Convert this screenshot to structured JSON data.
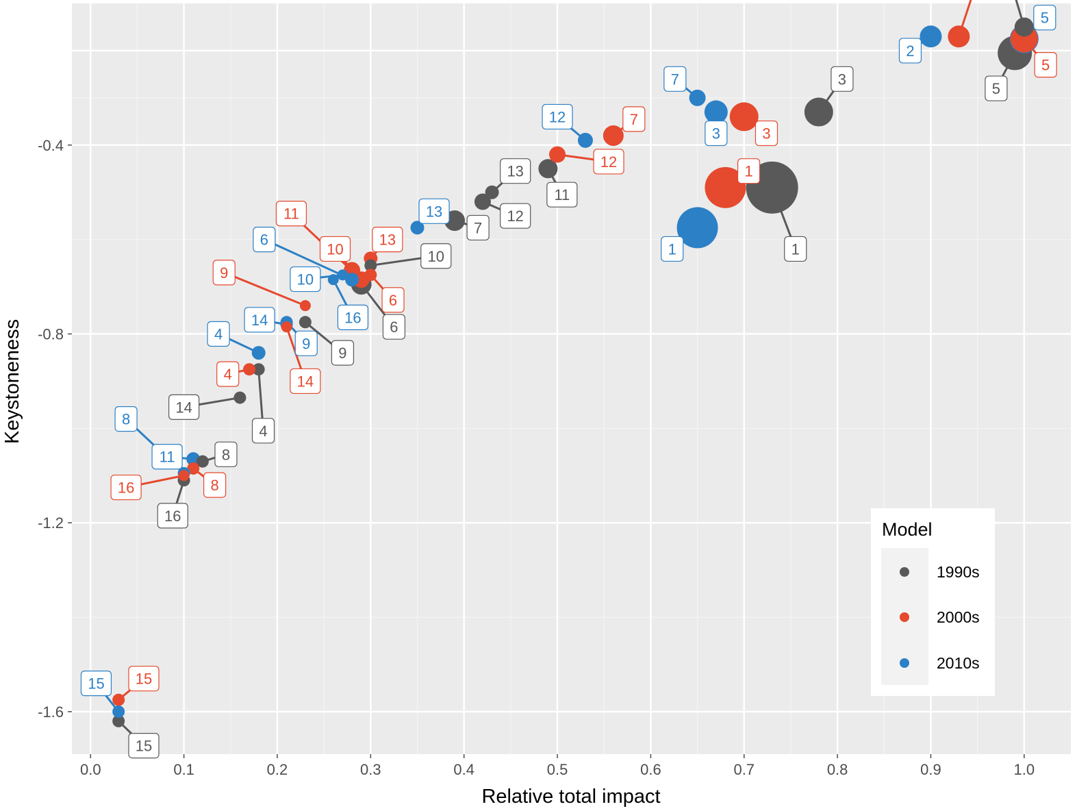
{
  "chart_data": {
    "type": "scatter",
    "title": "",
    "xlabel": "Relative total impact",
    "ylabel": "Keystoneness",
    "xlim": [
      -0.02,
      1.05
    ],
    "ylim": [
      -1.69,
      -0.1
    ],
    "xticks": [
      0.0,
      0.1,
      0.2,
      0.3,
      0.4,
      0.5,
      0.6,
      0.7,
      0.8,
      0.9,
      1.0
    ],
    "xtick_labels": [
      "0.0",
      "0.1",
      "0.2",
      "0.3",
      "0.4",
      "0.5",
      "0.6",
      "0.7",
      "0.8",
      "0.9",
      "1.0"
    ],
    "yticks": [
      -0.4,
      -0.8,
      -1.2,
      -1.6
    ],
    "ytick_labels": [
      "-0.4",
      "-0.8",
      "-1.2",
      "-1.6"
    ],
    "grid": true,
    "legend": {
      "title": "Model",
      "position": "bottom-right",
      "entries": [
        "1990s",
        "2000s",
        "2010s"
      ]
    },
    "series": [
      {
        "name": "1990s",
        "color": "#595959",
        "points": [
          {
            "id": "1",
            "x": 0.73,
            "y": -0.49,
            "size": 38,
            "lx": 0.755,
            "ly": -0.62
          },
          {
            "id": "2",
            "x": 1.0,
            "y": -0.15,
            "size": 14,
            "lx": 0.985,
            "ly": -0.05
          },
          {
            "id": "3",
            "x": 0.78,
            "y": -0.33,
            "size": 21,
            "lx": 0.805,
            "ly": -0.26
          },
          {
            "id": "4",
            "x": 0.18,
            "y": -0.875,
            "size": 9,
            "lx": 0.185,
            "ly": -1.005
          },
          {
            "id": "5",
            "x": 0.99,
            "y": -0.205,
            "size": 25,
            "lx": 0.97,
            "ly": -0.28
          },
          {
            "id": "6",
            "x": 0.29,
            "y": -0.695,
            "size": 15,
            "lx": 0.325,
            "ly": -0.785
          },
          {
            "id": "7",
            "x": 0.39,
            "y": -0.56,
            "size": 15,
            "lx": 0.415,
            "ly": -0.575
          },
          {
            "id": "8",
            "x": 0.12,
            "y": -1.07,
            "size": 9,
            "lx": 0.145,
            "ly": -1.055
          },
          {
            "id": "9",
            "x": 0.23,
            "y": -0.775,
            "size": 9,
            "lx": 0.27,
            "ly": -0.84
          },
          {
            "id": "10",
            "x": 0.3,
            "y": -0.655,
            "size": 9,
            "lx": 0.37,
            "ly": -0.635
          },
          {
            "id": "11",
            "x": 0.49,
            "y": -0.45,
            "size": 14,
            "lx": 0.505,
            "ly": -0.505
          },
          {
            "id": "12",
            "x": 0.42,
            "y": -0.52,
            "size": 12,
            "lx": 0.455,
            "ly": -0.55
          },
          {
            "id": "13",
            "x": 0.43,
            "y": -0.5,
            "size": 10,
            "lx": 0.455,
            "ly": -0.455
          },
          {
            "id": "14",
            "x": 0.16,
            "y": -0.935,
            "size": 9,
            "lx": 0.1,
            "ly": -0.955
          },
          {
            "id": "15",
            "x": 0.03,
            "y": -1.62,
            "size": 9,
            "lx": 0.057,
            "ly": -1.672
          },
          {
            "id": "16",
            "x": 0.1,
            "y": -1.11,
            "size": 9,
            "lx": 0.088,
            "ly": -1.185
          }
        ]
      },
      {
        "name": "2000s",
        "color": "#e5492e",
        "points": [
          {
            "id": "1",
            "x": 0.68,
            "y": -0.49,
            "size": 30,
            "lx": 0.705,
            "ly": -0.455
          },
          {
            "id": "2",
            "x": 0.93,
            "y": -0.17,
            "size": 16,
            "lx": 0.95,
            "ly": -0.05
          },
          {
            "id": "3",
            "x": 0.7,
            "y": -0.34,
            "size": 21,
            "lx": 0.724,
            "ly": -0.375
          },
          {
            "id": "4",
            "x": 0.17,
            "y": -0.875,
            "size": 9,
            "lx": 0.147,
            "ly": -0.885
          },
          {
            "id": "5",
            "x": 1.0,
            "y": -0.175,
            "size": 20,
            "lx": 1.023,
            "ly": -0.23
          },
          {
            "id": "6",
            "x": 0.3,
            "y": -0.675,
            "size": 9,
            "lx": 0.324,
            "ly": -0.728
          },
          {
            "id": "7",
            "x": 0.56,
            "y": -0.38,
            "size": 15,
            "lx": 0.582,
            "ly": -0.345
          },
          {
            "id": "8",
            "x": 0.11,
            "y": -1.085,
            "size": 9,
            "lx": 0.133,
            "ly": -1.12
          },
          {
            "id": "9",
            "x": 0.23,
            "y": -0.74,
            "size": 8,
            "lx": 0.143,
            "ly": -0.67
          },
          {
            "id": "10",
            "x": 0.28,
            "y": -0.665,
            "size": 12,
            "lx": 0.262,
            "ly": -0.62
          },
          {
            "id": "11",
            "x": 0.29,
            "y": -0.685,
            "size": 12,
            "lx": 0.215,
            "ly": -0.545
          },
          {
            "id": "12",
            "x": 0.5,
            "y": -0.42,
            "size": 12,
            "lx": 0.555,
            "ly": -0.435
          },
          {
            "id": "13",
            "x": 0.3,
            "y": -0.64,
            "size": 10,
            "lx": 0.318,
            "ly": -0.6
          },
          {
            "id": "14",
            "x": 0.21,
            "y": -0.785,
            "size": 8,
            "lx": 0.23,
            "ly": -0.9
          },
          {
            "id": "15",
            "x": 0.03,
            "y": -1.575,
            "size": 9,
            "lx": 0.057,
            "ly": -1.53
          },
          {
            "id": "16",
            "x": 0.1,
            "y": -1.1,
            "size": 8,
            "lx": 0.038,
            "ly": -1.125
          }
        ]
      },
      {
        "name": "2010s",
        "color": "#2c80c6",
        "points": [
          {
            "id": "1",
            "x": 0.65,
            "y": -0.575,
            "size": 30,
            "lx": 0.623,
            "ly": -0.62
          },
          {
            "id": "2",
            "x": 0.9,
            "y": -0.17,
            "size": 16,
            "lx": 0.878,
            "ly": -0.2
          },
          {
            "id": "3",
            "x": 0.67,
            "y": -0.33,
            "size": 17,
            "lx": 0.67,
            "ly": -0.375
          },
          {
            "id": "4",
            "x": 0.18,
            "y": -0.84,
            "size": 10,
            "lx": 0.137,
            "ly": -0.8
          },
          {
            "id": "5",
            "x": 1.0,
            "y": -0.175,
            "size": 21,
            "lx": 1.022,
            "ly": -0.13
          },
          {
            "id": "6",
            "x": 0.28,
            "y": -0.685,
            "size": 10,
            "lx": 0.186,
            "ly": -0.6
          },
          {
            "id": "7",
            "x": 0.65,
            "y": -0.3,
            "size": 12,
            "lx": 0.626,
            "ly": -0.26
          },
          {
            "id": "8",
            "x": 0.1,
            "y": -1.095,
            "size": 9,
            "lx": 0.038,
            "ly": -0.98
          },
          {
            "id": "9",
            "x": 0.21,
            "y": -0.775,
            "size": 9,
            "lx": 0.231,
            "ly": -0.82
          },
          {
            "id": "10",
            "x": 0.27,
            "y": -0.675,
            "size": 8,
            "lx": 0.23,
            "ly": -0.684
          },
          {
            "id": "11",
            "x": 0.11,
            "y": -1.065,
            "size": 10,
            "lx": 0.082,
            "ly": -1.06
          },
          {
            "id": "12",
            "x": 0.53,
            "y": -0.39,
            "size": 11,
            "lx": 0.5,
            "ly": -0.34
          },
          {
            "id": "13",
            "x": 0.35,
            "y": -0.575,
            "size": 10,
            "lx": 0.368,
            "ly": -0.54
          },
          {
            "id": "14",
            "x": 0.21,
            "y": -0.78,
            "size": 9,
            "lx": 0.181,
            "ly": -0.77
          },
          {
            "id": "15",
            "x": 0.03,
            "y": -1.6,
            "size": 9,
            "lx": 0.006,
            "ly": -1.54
          },
          {
            "id": "16",
            "x": 0.26,
            "y": -0.685,
            "size": 8,
            "lx": 0.281,
            "ly": -0.765
          }
        ]
      }
    ]
  }
}
